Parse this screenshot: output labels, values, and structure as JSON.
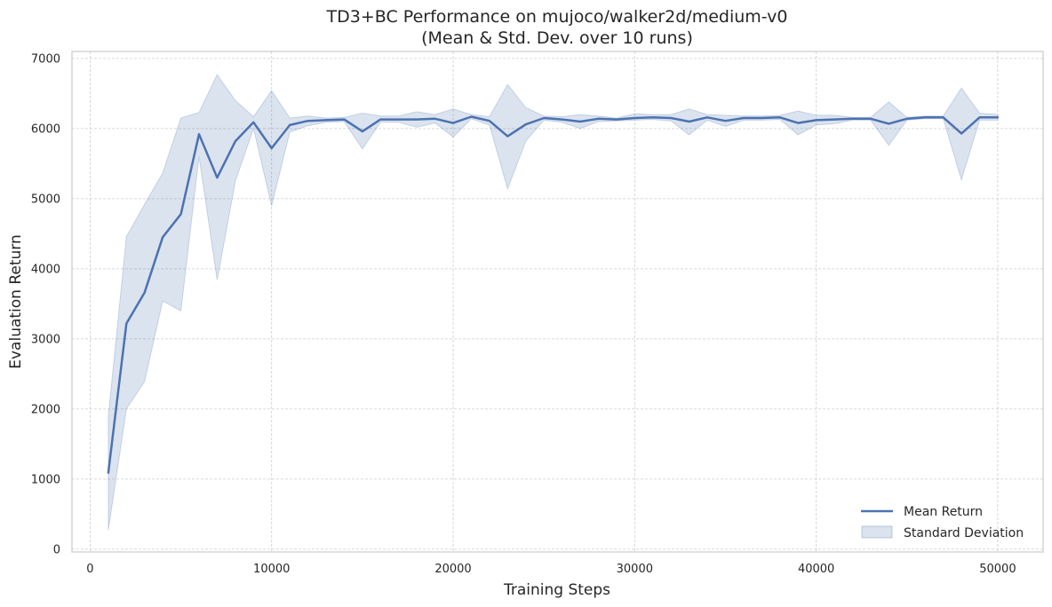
{
  "chart_data": {
    "type": "line",
    "title": "TD3+BC Performance on mujoco/walker2d/medium-v0",
    "subtitle": "(Mean & Std. Dev. over 10 runs)",
    "xlabel": "Training Steps",
    "ylabel": "Evaluation Return",
    "xlim": [
      -1000,
      52500
    ],
    "ylim": [
      -40,
      7100
    ],
    "xticks": [
      0,
      10000,
      20000,
      30000,
      40000,
      50000
    ],
    "yticks": [
      0,
      1000,
      2000,
      3000,
      4000,
      5000,
      6000,
      7000
    ],
    "grid": true,
    "legend_position": "bottom-right",
    "colors": {
      "line": "#4c72b0",
      "band": "#4c72b0"
    },
    "x": [
      1000,
      2000,
      3000,
      4000,
      5000,
      6000,
      7000,
      8000,
      9000,
      10000,
      11000,
      12000,
      13000,
      14000,
      15000,
      16000,
      17000,
      18000,
      19000,
      20000,
      21000,
      22000,
      23000,
      24000,
      25000,
      26000,
      27000,
      28000,
      29000,
      30000,
      31000,
      32000,
      33000,
      34000,
      35000,
      36000,
      37000,
      38000,
      39000,
      40000,
      41000,
      42000,
      43000,
      44000,
      45000,
      46000,
      47000,
      48000,
      49000,
      50000
    ],
    "series": [
      {
        "name": "Mean Return",
        "values": [
          1090,
          3220,
          3660,
          4450,
          4780,
          5920,
          5300,
          5820,
          6090,
          5720,
          6050,
          6110,
          6120,
          6130,
          5960,
          6130,
          6130,
          6130,
          6140,
          6080,
          6170,
          6110,
          5890,
          6060,
          6150,
          6130,
          6100,
          6140,
          6130,
          6150,
          6160,
          6150,
          6100,
          6160,
          6110,
          6150,
          6150,
          6160,
          6080,
          6120,
          6130,
          6140,
          6140,
          6070,
          6140,
          6160,
          6160,
          5930,
          6160,
          6160
        ]
      },
      {
        "name": "Standard Deviation",
        "lower": [
          270,
          2000,
          2390,
          3540,
          3400,
          5600,
          3840,
          5250,
          6000,
          4900,
          5950,
          6040,
          6090,
          6100,
          5710,
          6090,
          6090,
          6020,
          6080,
          5880,
          6140,
          6050,
          5140,
          5820,
          6120,
          6090,
          6000,
          6100,
          6110,
          6120,
          6130,
          6110,
          5910,
          6120,
          6030,
          6120,
          6120,
          6130,
          5910,
          6050,
          6070,
          6120,
          6120,
          5760,
          6120,
          6140,
          6140,
          5270,
          6120,
          6120
        ],
        "upper": [
          1900,
          4460,
          4920,
          5370,
          6150,
          6230,
          6770,
          6400,
          6170,
          6540,
          6150,
          6180,
          6150,
          6160,
          6220,
          6180,
          6180,
          6240,
          6200,
          6280,
          6200,
          6170,
          6630,
          6300,
          6180,
          6170,
          6200,
          6180,
          6150,
          6210,
          6200,
          6200,
          6280,
          6200,
          6190,
          6180,
          6180,
          6190,
          6250,
          6190,
          6190,
          6160,
          6160,
          6380,
          6160,
          6180,
          6180,
          6580,
          6220,
          6200
        ]
      }
    ]
  }
}
